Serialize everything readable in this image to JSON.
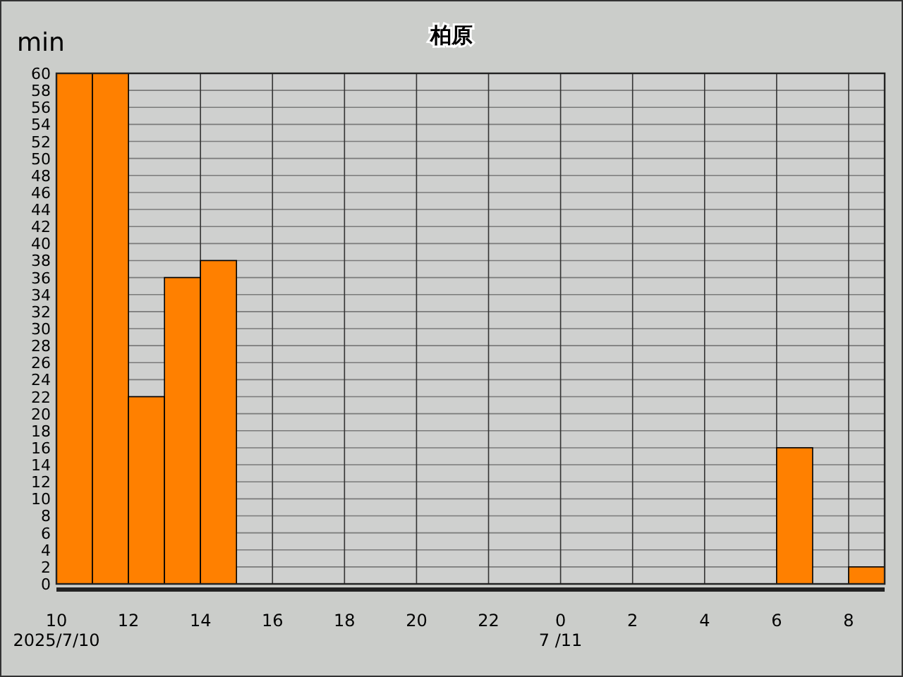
{
  "chart_data": {
    "type": "histogram",
    "title": "柏原",
    "ylabel": "min",
    "bins": [
      "2025-07-10T10:00",
      "2025-07-10T11:00",
      "2025-07-10T12:00",
      "2025-07-10T13:00",
      "2025-07-10T14:00",
      "2025-07-10T15:00",
      "2025-07-10T16:00",
      "2025-07-10T17:00",
      "2025-07-10T18:00",
      "2025-07-10T19:00",
      "2025-07-10T20:00",
      "2025-07-10T21:00",
      "2025-07-10T22:00",
      "2025-07-10T23:00",
      "2025-07-11T00:00",
      "2025-07-11T01:00",
      "2025-07-11T02:00",
      "2025-07-11T03:00",
      "2025-07-11T04:00",
      "2025-07-11T05:00",
      "2025-07-11T06:00",
      "2025-07-11T07:00",
      "2025-07-11T08:00",
      "2025-07-11T09:00"
    ],
    "values": [
      60,
      60,
      22,
      36,
      38,
      0,
      0,
      0,
      0,
      0,
      0,
      0,
      0,
      0,
      0,
      0,
      0,
      0,
      0,
      0,
      16,
      0,
      2
    ],
    "color": "#ff8000",
    "xlim": [
      "2025-07-10T10:00",
      "2025-07-11T09:00"
    ],
    "xticks": [
      {
        "value": "2025-07-10T10:00",
        "label": "10"
      },
      {
        "value": "2025-07-10T12:00",
        "label": "12"
      },
      {
        "value": "2025-07-10T14:00",
        "label": "14"
      },
      {
        "value": "2025-07-10T16:00",
        "label": "16"
      },
      {
        "value": "2025-07-10T18:00",
        "label": "18"
      },
      {
        "value": "2025-07-10T20:00",
        "label": "20"
      },
      {
        "value": "2025-07-10T22:00",
        "label": "22"
      },
      {
        "value": "2025-07-11T00:00",
        "label": "0"
      },
      {
        "value": "2025-07-11T02:00",
        "label": "2"
      },
      {
        "value": "2025-07-11T04:00",
        "label": "4"
      },
      {
        "value": "2025-07-11T06:00",
        "label": "6"
      },
      {
        "value": "2025-07-11T08:00",
        "label": "8"
      }
    ],
    "ylim": [
      0,
      60
    ],
    "yticks": [
      0,
      2,
      4,
      6,
      8,
      10,
      12,
      14,
      16,
      18,
      20,
      22,
      24,
      26,
      28,
      30,
      32,
      34,
      36,
      38,
      40,
      42,
      44,
      46,
      48,
      50,
      52,
      54,
      56,
      58,
      60
    ],
    "grid": true,
    "annotations": [
      "2025/7/10",
      "7 /11"
    ]
  }
}
